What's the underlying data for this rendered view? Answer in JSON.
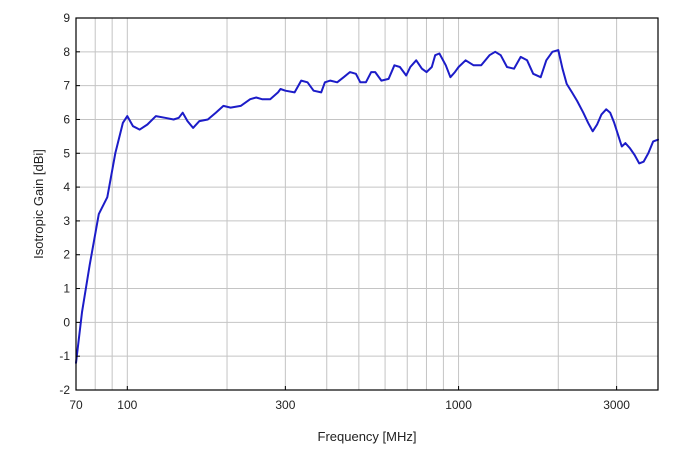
{
  "chart_data": {
    "type": "line",
    "title": "",
    "xlabel": "Frequency [MHz]",
    "ylabel": "Isotropic Gain [dBi]",
    "x_scale": "log",
    "xlim": [
      70,
      4000
    ],
    "ylim": [
      -2,
      9
    ],
    "grid": true,
    "line_color": "#1c1cc8",
    "x_ticks": [
      {
        "value": 70,
        "label": "70"
      },
      {
        "value": 100,
        "label": "100"
      },
      {
        "value": 300,
        "label": "300"
      },
      {
        "value": 1000,
        "label": "1000"
      },
      {
        "value": 3000,
        "label": "3000"
      }
    ],
    "x_grid_values": [
      70,
      80,
      90,
      100,
      200,
      300,
      400,
      500,
      600,
      700,
      800,
      900,
      1000,
      2000,
      3000,
      4000
    ],
    "y_ticks": [
      -2,
      -1,
      0,
      1,
      2,
      3,
      4,
      5,
      6,
      7,
      8,
      9
    ],
    "series": [
      {
        "name": "",
        "x": [
          70,
          73,
          77,
          82,
          87,
          92,
          97,
          100,
          104,
          109,
          115,
          122,
          130,
          138,
          143,
          147,
          152,
          158,
          165,
          175,
          185,
          195,
          205,
          220,
          235,
          245,
          255,
          270,
          285,
          290,
          300,
          320,
          335,
          350,
          365,
          385,
          395,
          410,
          430,
          450,
          470,
          490,
          505,
          525,
          545,
          560,
          585,
          615,
          640,
          665,
          695,
          715,
          745,
          775,
          800,
          830,
          850,
          875,
          915,
          945,
          975,
          1000,
          1050,
          1110,
          1170,
          1240,
          1290,
          1340,
          1400,
          1470,
          1540,
          1610,
          1680,
          1770,
          1840,
          1920,
          2000,
          2060,
          2120,
          2200,
          2280,
          2380,
          2460,
          2540,
          2620,
          2700,
          2790,
          2870,
          2950,
          3030,
          3110,
          3190,
          3290,
          3400,
          3510,
          3620,
          3740,
          3870,
          4000
        ],
        "y": [
          -1.2,
          0.3,
          1.7,
          3.2,
          3.7,
          5.0,
          5.9,
          6.1,
          5.8,
          5.7,
          5.85,
          6.1,
          6.05,
          6.0,
          6.05,
          6.2,
          5.95,
          5.75,
          5.95,
          6.0,
          6.2,
          6.4,
          6.35,
          6.4,
          6.6,
          6.65,
          6.6,
          6.6,
          6.8,
          6.9,
          6.85,
          6.8,
          7.15,
          7.1,
          6.85,
          6.8,
          7.1,
          7.15,
          7.1,
          7.25,
          7.4,
          7.35,
          7.1,
          7.1,
          7.4,
          7.4,
          7.15,
          7.2,
          7.6,
          7.55,
          7.3,
          7.55,
          7.75,
          7.5,
          7.4,
          7.55,
          7.9,
          7.95,
          7.6,
          7.25,
          7.4,
          7.55,
          7.75,
          7.6,
          7.6,
          7.9,
          8.0,
          7.9,
          7.55,
          7.5,
          7.85,
          7.75,
          7.35,
          7.25,
          7.75,
          8.0,
          8.05,
          7.5,
          7.05,
          6.8,
          6.55,
          6.2,
          5.9,
          5.65,
          5.85,
          6.15,
          6.3,
          6.2,
          5.9,
          5.55,
          5.2,
          5.3,
          5.15,
          4.95,
          4.7,
          4.75,
          5.0,
          5.35,
          5.4
        ]
      }
    ]
  }
}
